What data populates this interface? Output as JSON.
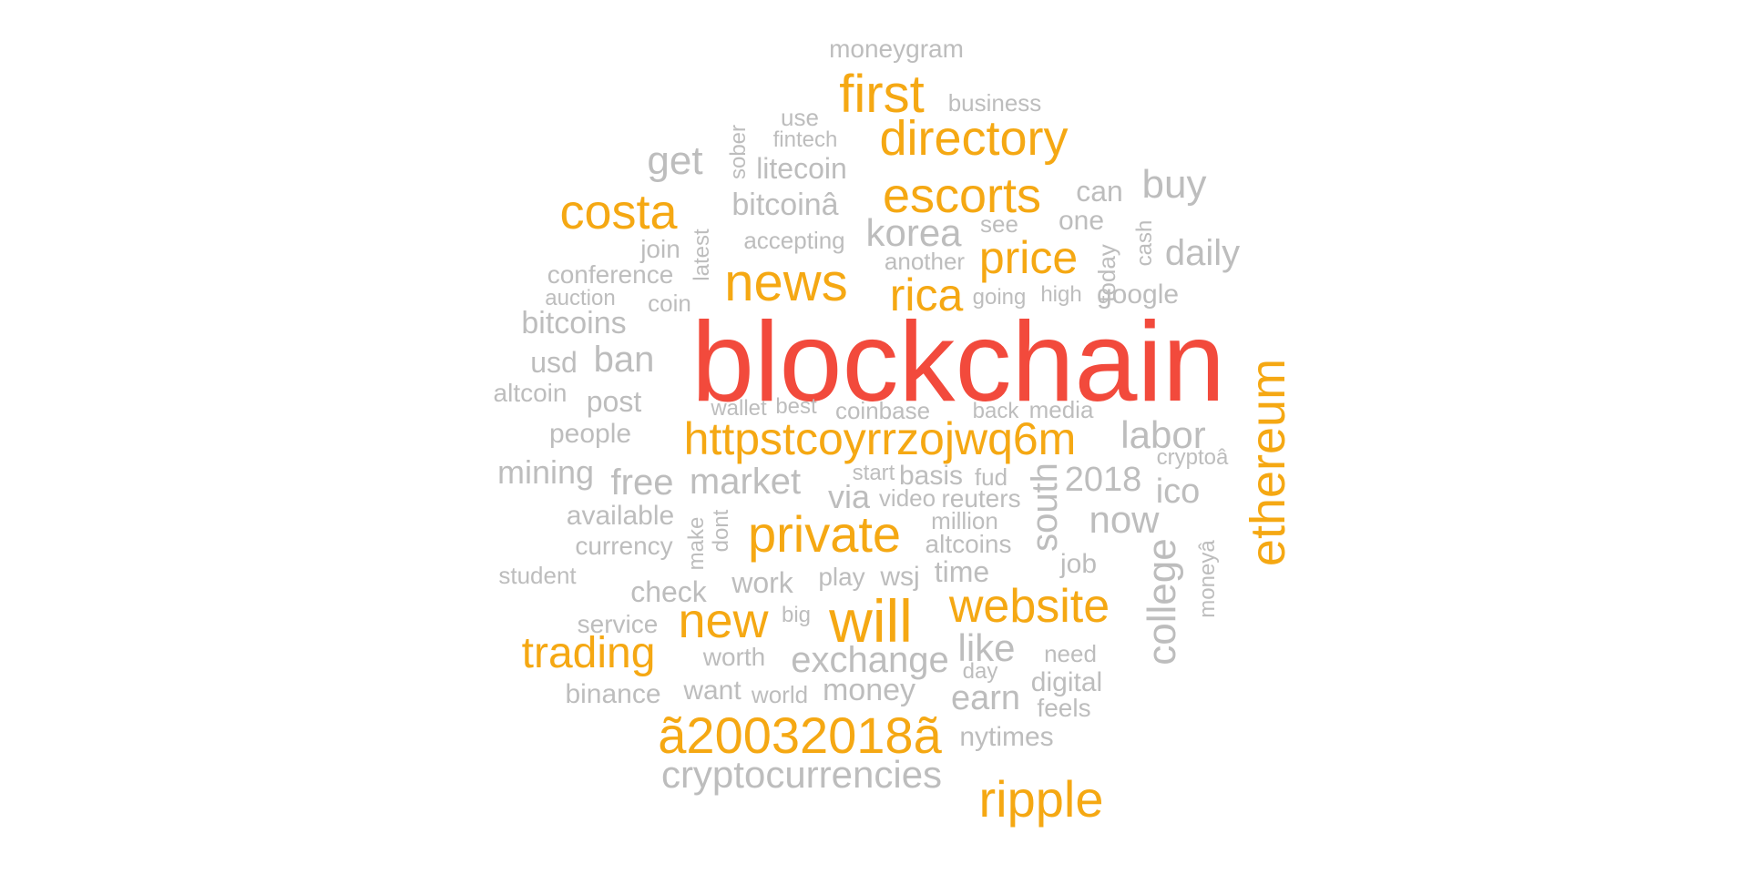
{
  "colors": {
    "red": "#F24A3C",
    "orange": "#F5A813",
    "gray": "#BDBDBD"
  },
  "words": [
    {
      "key": "blockchain",
      "text": "blockchain",
      "tier": 1
    },
    {
      "key": "ethereum",
      "text": "ethereum",
      "tier": 2
    },
    {
      "key": "httpstcoyrrzojwq6m",
      "text": "httpstcoyrrzojwq6m",
      "tier": 2
    },
    {
      "key": "first",
      "text": "first",
      "tier": 2
    },
    {
      "key": "directory",
      "text": "directory",
      "tier": 2
    },
    {
      "key": "costa",
      "text": "costa",
      "tier": 2
    },
    {
      "key": "escorts",
      "text": "escorts",
      "tier": 2
    },
    {
      "key": "news",
      "text": "news",
      "tier": 2
    },
    {
      "key": "rica",
      "text": "rica",
      "tier": 2
    },
    {
      "key": "price",
      "text": "price",
      "tier": 2
    },
    {
      "key": "private",
      "text": "private",
      "tier": 2
    },
    {
      "key": "new",
      "text": "new",
      "tier": 2
    },
    {
      "key": "will",
      "text": "will",
      "tier": 2
    },
    {
      "key": "website",
      "text": "website",
      "tier": 2
    },
    {
      "key": "trading",
      "text": "trading",
      "tier": 2
    },
    {
      "key": "a20032018a",
      "text": "ã20032018ã",
      "tier": 2
    },
    {
      "key": "ripple",
      "text": "ripple",
      "tier": 2
    },
    {
      "key": "moneygram",
      "text": "moneygram",
      "tier": 3
    },
    {
      "key": "business",
      "text": "business",
      "tier": 3
    },
    {
      "key": "use",
      "text": "use",
      "tier": 3
    },
    {
      "key": "fintech",
      "text": "fintech",
      "tier": 3
    },
    {
      "key": "sober",
      "text": "sober",
      "tier": 3
    },
    {
      "key": "get",
      "text": "get",
      "tier": 3
    },
    {
      "key": "litecoin",
      "text": "litecoin",
      "tier": 3
    },
    {
      "key": "can",
      "text": "can",
      "tier": 3
    },
    {
      "key": "buy",
      "text": "buy",
      "tier": 3
    },
    {
      "key": "bitcoina",
      "text": "bitcoinâ",
      "tier": 3
    },
    {
      "key": "one",
      "text": "one",
      "tier": 3
    },
    {
      "key": "see",
      "text": "see",
      "tier": 3
    },
    {
      "key": "korea",
      "text": "korea",
      "tier": 3
    },
    {
      "key": "accepting",
      "text": "accepting",
      "tier": 3
    },
    {
      "key": "join",
      "text": "join",
      "tier": 3
    },
    {
      "key": "latest",
      "text": "latest",
      "tier": 3
    },
    {
      "key": "cash",
      "text": "cash",
      "tier": 3
    },
    {
      "key": "today",
      "text": "today",
      "tier": 3
    },
    {
      "key": "daily",
      "text": "daily",
      "tier": 3
    },
    {
      "key": "another",
      "text": "another",
      "tier": 3
    },
    {
      "key": "conference",
      "text": "conference",
      "tier": 3
    },
    {
      "key": "auction",
      "text": "auction",
      "tier": 3
    },
    {
      "key": "coin",
      "text": "coin",
      "tier": 3
    },
    {
      "key": "going",
      "text": "going",
      "tier": 3
    },
    {
      "key": "high",
      "text": "high",
      "tier": 3
    },
    {
      "key": "google",
      "text": "google",
      "tier": 3
    },
    {
      "key": "bitcoins",
      "text": "bitcoins",
      "tier": 3
    },
    {
      "key": "usd",
      "text": "usd",
      "tier": 3
    },
    {
      "key": "ban",
      "text": "ban",
      "tier": 3
    },
    {
      "key": "altcoin",
      "text": "altcoin",
      "tier": 3
    },
    {
      "key": "post",
      "text": "post",
      "tier": 3
    },
    {
      "key": "wallet",
      "text": "wallet",
      "tier": 3
    },
    {
      "key": "best",
      "text": "best",
      "tier": 3
    },
    {
      "key": "coinbase",
      "text": "coinbase",
      "tier": 3
    },
    {
      "key": "back",
      "text": "back",
      "tier": 3
    },
    {
      "key": "media",
      "text": "media",
      "tier": 3
    },
    {
      "key": "people",
      "text": "people",
      "tier": 3
    },
    {
      "key": "labor",
      "text": "labor",
      "tier": 3
    },
    {
      "key": "cryptoa",
      "text": "cryptoâ",
      "tier": 3
    },
    {
      "key": "mining",
      "text": "mining",
      "tier": 3
    },
    {
      "key": "free",
      "text": "free",
      "tier": 3
    },
    {
      "key": "market",
      "text": "market",
      "tier": 3
    },
    {
      "key": "start",
      "text": "start",
      "tier": 3
    },
    {
      "key": "basis",
      "text": "basis",
      "tier": 3
    },
    {
      "key": "fud",
      "text": "fud",
      "tier": 3
    },
    {
      "key": "2018",
      "text": "2018",
      "tier": 3
    },
    {
      "key": "ico",
      "text": "ico",
      "tier": 3
    },
    {
      "key": "via",
      "text": "via",
      "tier": 3
    },
    {
      "key": "video",
      "text": "video",
      "tier": 3
    },
    {
      "key": "reuters",
      "text": "reuters",
      "tier": 3
    },
    {
      "key": "south",
      "text": "south",
      "tier": 3
    },
    {
      "key": "now",
      "text": "now",
      "tier": 3
    },
    {
      "key": "available",
      "text": "available",
      "tier": 3
    },
    {
      "key": "make",
      "text": "make",
      "tier": 3
    },
    {
      "key": "dont",
      "text": "dont",
      "tier": 3
    },
    {
      "key": "million",
      "text": "million",
      "tier": 3
    },
    {
      "key": "currency",
      "text": "currency",
      "tier": 3
    },
    {
      "key": "altcoins",
      "text": "altcoins",
      "tier": 3
    },
    {
      "key": "college",
      "text": "college",
      "tier": 3
    },
    {
      "key": "moneya",
      "text": "moneyâ",
      "tier": 3
    },
    {
      "key": "job",
      "text": "job",
      "tier": 3
    },
    {
      "key": "student",
      "text": "student",
      "tier": 3
    },
    {
      "key": "play",
      "text": "play",
      "tier": 3
    },
    {
      "key": "wsj",
      "text": "wsj",
      "tier": 3
    },
    {
      "key": "time",
      "text": "time",
      "tier": 3
    },
    {
      "key": "work",
      "text": "work",
      "tier": 3
    },
    {
      "key": "check",
      "text": "check",
      "tier": 3
    },
    {
      "key": "service",
      "text": "service",
      "tier": 3
    },
    {
      "key": "big",
      "text": "big",
      "tier": 3
    },
    {
      "key": "worth",
      "text": "worth",
      "tier": 3
    },
    {
      "key": "exchange",
      "text": "exchange",
      "tier": 3
    },
    {
      "key": "like",
      "text": "like",
      "tier": 3
    },
    {
      "key": "need",
      "text": "need",
      "tier": 3
    },
    {
      "key": "day",
      "text": "day",
      "tier": 3
    },
    {
      "key": "digital",
      "text": "digital",
      "tier": 3
    },
    {
      "key": "binance",
      "text": "binance",
      "tier": 3
    },
    {
      "key": "want",
      "text": "want",
      "tier": 3
    },
    {
      "key": "world",
      "text": "world",
      "tier": 3
    },
    {
      "key": "money",
      "text": "money",
      "tier": 3
    },
    {
      "key": "earn",
      "text": "earn",
      "tier": 3
    },
    {
      "key": "feels",
      "text": "feels",
      "tier": 3
    },
    {
      "key": "nytimes",
      "text": "nytimes",
      "tier": 3
    },
    {
      "key": "cryptocurrencies",
      "text": "cryptocurrencies",
      "tier": 3
    }
  ]
}
